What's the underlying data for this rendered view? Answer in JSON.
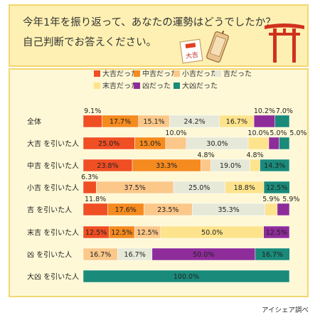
{
  "header": {
    "title_line1": "今年1年を振り返って、あなたの運勢はどうでしたか？",
    "title_line2": "自己判断でお答えください。"
  },
  "credit": "アイシェア調べ",
  "icons": [
    "omikuji-paper-icon",
    "omikuji-box-icon",
    "torii-gate-icon"
  ],
  "chart_data": {
    "type": "bar",
    "orientation": "horizontal",
    "stacked": true,
    "percent": true,
    "categories": [
      "全体",
      "大吉 を引いた人",
      "中吉 を引いた人",
      "小吉 を引いた人",
      "吉 を引いた人",
      "末吉 を引いた人",
      "凶 を引いた人",
      "大凶 を引いた人"
    ],
    "series": [
      {
        "name": "大吉だった",
        "color": "#f04e23",
        "values": [
          9.1,
          25.0,
          23.8,
          6.3,
          11.8,
          12.5,
          0,
          0
        ]
      },
      {
        "name": "中吉だった",
        "color": "#f58a1f",
        "values": [
          17.7,
          15.0,
          33.3,
          0,
          17.6,
          12.5,
          0,
          0
        ]
      },
      {
        "name": "小吉だった",
        "color": "#fbc88a",
        "values": [
          15.1,
          10.0,
          4.8,
          37.5,
          23.5,
          12.5,
          16.7,
          0
        ]
      },
      {
        "name": "吉だった",
        "color": "#e6e8d8",
        "values": [
          24.2,
          30.0,
          19.0,
          25.0,
          35.3,
          0,
          16.7,
          0
        ]
      },
      {
        "name": "末吉だった",
        "color": "#fde38b",
        "values": [
          16.7,
          10.0,
          4.8,
          18.8,
          5.9,
          50.0,
          0,
          0
        ]
      },
      {
        "name": "凶だった",
        "color": "#8e2c9a",
        "values": [
          10.2,
          5.0,
          0,
          0,
          5.9,
          12.5,
          50.0,
          0
        ]
      },
      {
        "name": "大凶だった",
        "color": "#1a8a7a",
        "values": [
          7.0,
          5.0,
          14.3,
          12.5,
          0,
          0,
          16.7,
          100.0
        ]
      }
    ],
    "legend_position": "top"
  }
}
